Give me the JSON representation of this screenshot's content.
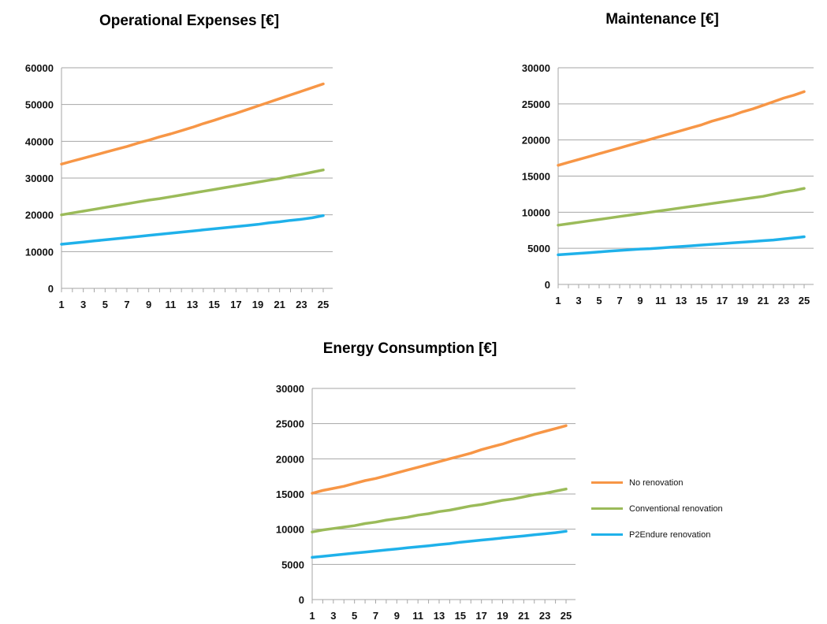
{
  "colors": {
    "no_renovation": "#f79646",
    "conventional": "#9bbb59",
    "p2endure": "#1fb1ea"
  },
  "legend": {
    "items": [
      {
        "label": "No renovation",
        "color": "#f79646"
      },
      {
        "label": "Conventional renovation",
        "color": "#9bbb59"
      },
      {
        "label": "P2Endure renovation",
        "color": "#1fb1ea"
      }
    ]
  },
  "chart_data": [
    {
      "type": "line",
      "title": "Operational Expenses [€]",
      "x": [
        1,
        2,
        3,
        4,
        5,
        6,
        7,
        8,
        9,
        10,
        11,
        12,
        13,
        14,
        15,
        16,
        17,
        18,
        19,
        20,
        21,
        22,
        23,
        24,
        25
      ],
      "x_tick_labels": [
        "1",
        "3",
        "5",
        "7",
        "9",
        "11",
        "13",
        "15",
        "17",
        "19",
        "21",
        "23",
        "25"
      ],
      "ylim": [
        0,
        60000
      ],
      "y_ticks": [
        0,
        10000,
        20000,
        30000,
        40000,
        50000,
        60000
      ],
      "grid": true,
      "series": [
        {
          "name": "No renovation",
          "color": "#f79646",
          "values": [
            33800,
            34600,
            35400,
            36200,
            37000,
            37800,
            38600,
            39500,
            40300,
            41200,
            42000,
            42900,
            43800,
            44800,
            45700,
            46700,
            47600,
            48600,
            49600,
            50600,
            51600,
            52600,
            53600,
            54600,
            55600
          ]
        },
        {
          "name": "Conventional renovation",
          "color": "#9bbb59",
          "values": [
            20000,
            20500,
            21000,
            21500,
            22000,
            22500,
            23000,
            23500,
            24000,
            24400,
            24900,
            25400,
            25900,
            26400,
            26900,
            27400,
            27900,
            28400,
            28900,
            29400,
            29900,
            30500,
            31000,
            31600,
            32200
          ]
        },
        {
          "name": "P2Endure renovation",
          "color": "#1fb1ea",
          "values": [
            12000,
            12300,
            12600,
            12900,
            13200,
            13500,
            13800,
            14100,
            14400,
            14700,
            15000,
            15300,
            15600,
            15900,
            16200,
            16500,
            16800,
            17100,
            17400,
            17800,
            18100,
            18500,
            18800,
            19200,
            19800
          ]
        }
      ]
    },
    {
      "type": "line",
      "title": "Maintenance [€]",
      "x": [
        1,
        2,
        3,
        4,
        5,
        6,
        7,
        8,
        9,
        10,
        11,
        12,
        13,
        14,
        15,
        16,
        17,
        18,
        19,
        20,
        21,
        22,
        23,
        24,
        25
      ],
      "x_tick_labels": [
        "1",
        "3",
        "5",
        "7",
        "9",
        "11",
        "13",
        "15",
        "17",
        "19",
        "21",
        "23",
        "25"
      ],
      "ylim": [
        0,
        30000
      ],
      "y_ticks": [
        0,
        5000,
        10000,
        15000,
        20000,
        25000,
        30000
      ],
      "grid": true,
      "series": [
        {
          "name": "No renovation",
          "color": "#f79646",
          "values": [
            16500,
            16900,
            17300,
            17700,
            18100,
            18500,
            18900,
            19300,
            19700,
            20100,
            20500,
            20900,
            21300,
            21700,
            22100,
            22600,
            23000,
            23400,
            23900,
            24300,
            24800,
            25300,
            25800,
            26200,
            26700
          ]
        },
        {
          "name": "Conventional renovation",
          "color": "#9bbb59",
          "values": [
            8200,
            8400,
            8600,
            8800,
            9000,
            9200,
            9400,
            9600,
            9800,
            10000,
            10200,
            10400,
            10600,
            10800,
            11000,
            11200,
            11400,
            11600,
            11800,
            12000,
            12200,
            12500,
            12800,
            13000,
            13300
          ]
        },
        {
          "name": "P2Endure renovation",
          "color": "#1fb1ea",
          "values": [
            4100,
            4200,
            4300,
            4400,
            4500,
            4600,
            4700,
            4800,
            4900,
            4950,
            5050,
            5150,
            5250,
            5350,
            5450,
            5550,
            5650,
            5750,
            5850,
            5950,
            6050,
            6150,
            6300,
            6450,
            6600
          ]
        }
      ]
    },
    {
      "type": "line",
      "title": "Energy Consumption [€]",
      "x": [
        1,
        2,
        3,
        4,
        5,
        6,
        7,
        8,
        9,
        10,
        11,
        12,
        13,
        14,
        15,
        16,
        17,
        18,
        19,
        20,
        21,
        22,
        23,
        24,
        25
      ],
      "x_tick_labels": [
        "1",
        "3",
        "5",
        "7",
        "9",
        "11",
        "13",
        "15",
        "17",
        "19",
        "21",
        "23",
        "25"
      ],
      "ylim": [
        0,
        30000
      ],
      "y_ticks": [
        0,
        5000,
        10000,
        15000,
        20000,
        25000,
        30000
      ],
      "grid": true,
      "legend_position": "right",
      "series": [
        {
          "name": "No renovation",
          "color": "#f79646",
          "values": [
            15100,
            15500,
            15800,
            16100,
            16500,
            16900,
            17200,
            17600,
            18000,
            18400,
            18800,
            19200,
            19600,
            20000,
            20400,
            20800,
            21300,
            21700,
            22100,
            22600,
            23000,
            23500,
            23900,
            24300,
            24700
          ]
        },
        {
          "name": "Conventional renovation",
          "color": "#9bbb59",
          "values": [
            9600,
            9900,
            10100,
            10300,
            10500,
            10800,
            11000,
            11300,
            11500,
            11700,
            12000,
            12200,
            12500,
            12700,
            13000,
            13300,
            13500,
            13800,
            14100,
            14300,
            14600,
            14900,
            15100,
            15400,
            15700
          ]
        },
        {
          "name": "P2Endure renovation",
          "color": "#1fb1ea",
          "values": [
            6000,
            6150,
            6300,
            6450,
            6600,
            6750,
            6900,
            7050,
            7200,
            7350,
            7500,
            7650,
            7800,
            7950,
            8150,
            8300,
            8450,
            8600,
            8750,
            8900,
            9050,
            9200,
            9350,
            9500,
            9700
          ]
        }
      ]
    }
  ]
}
